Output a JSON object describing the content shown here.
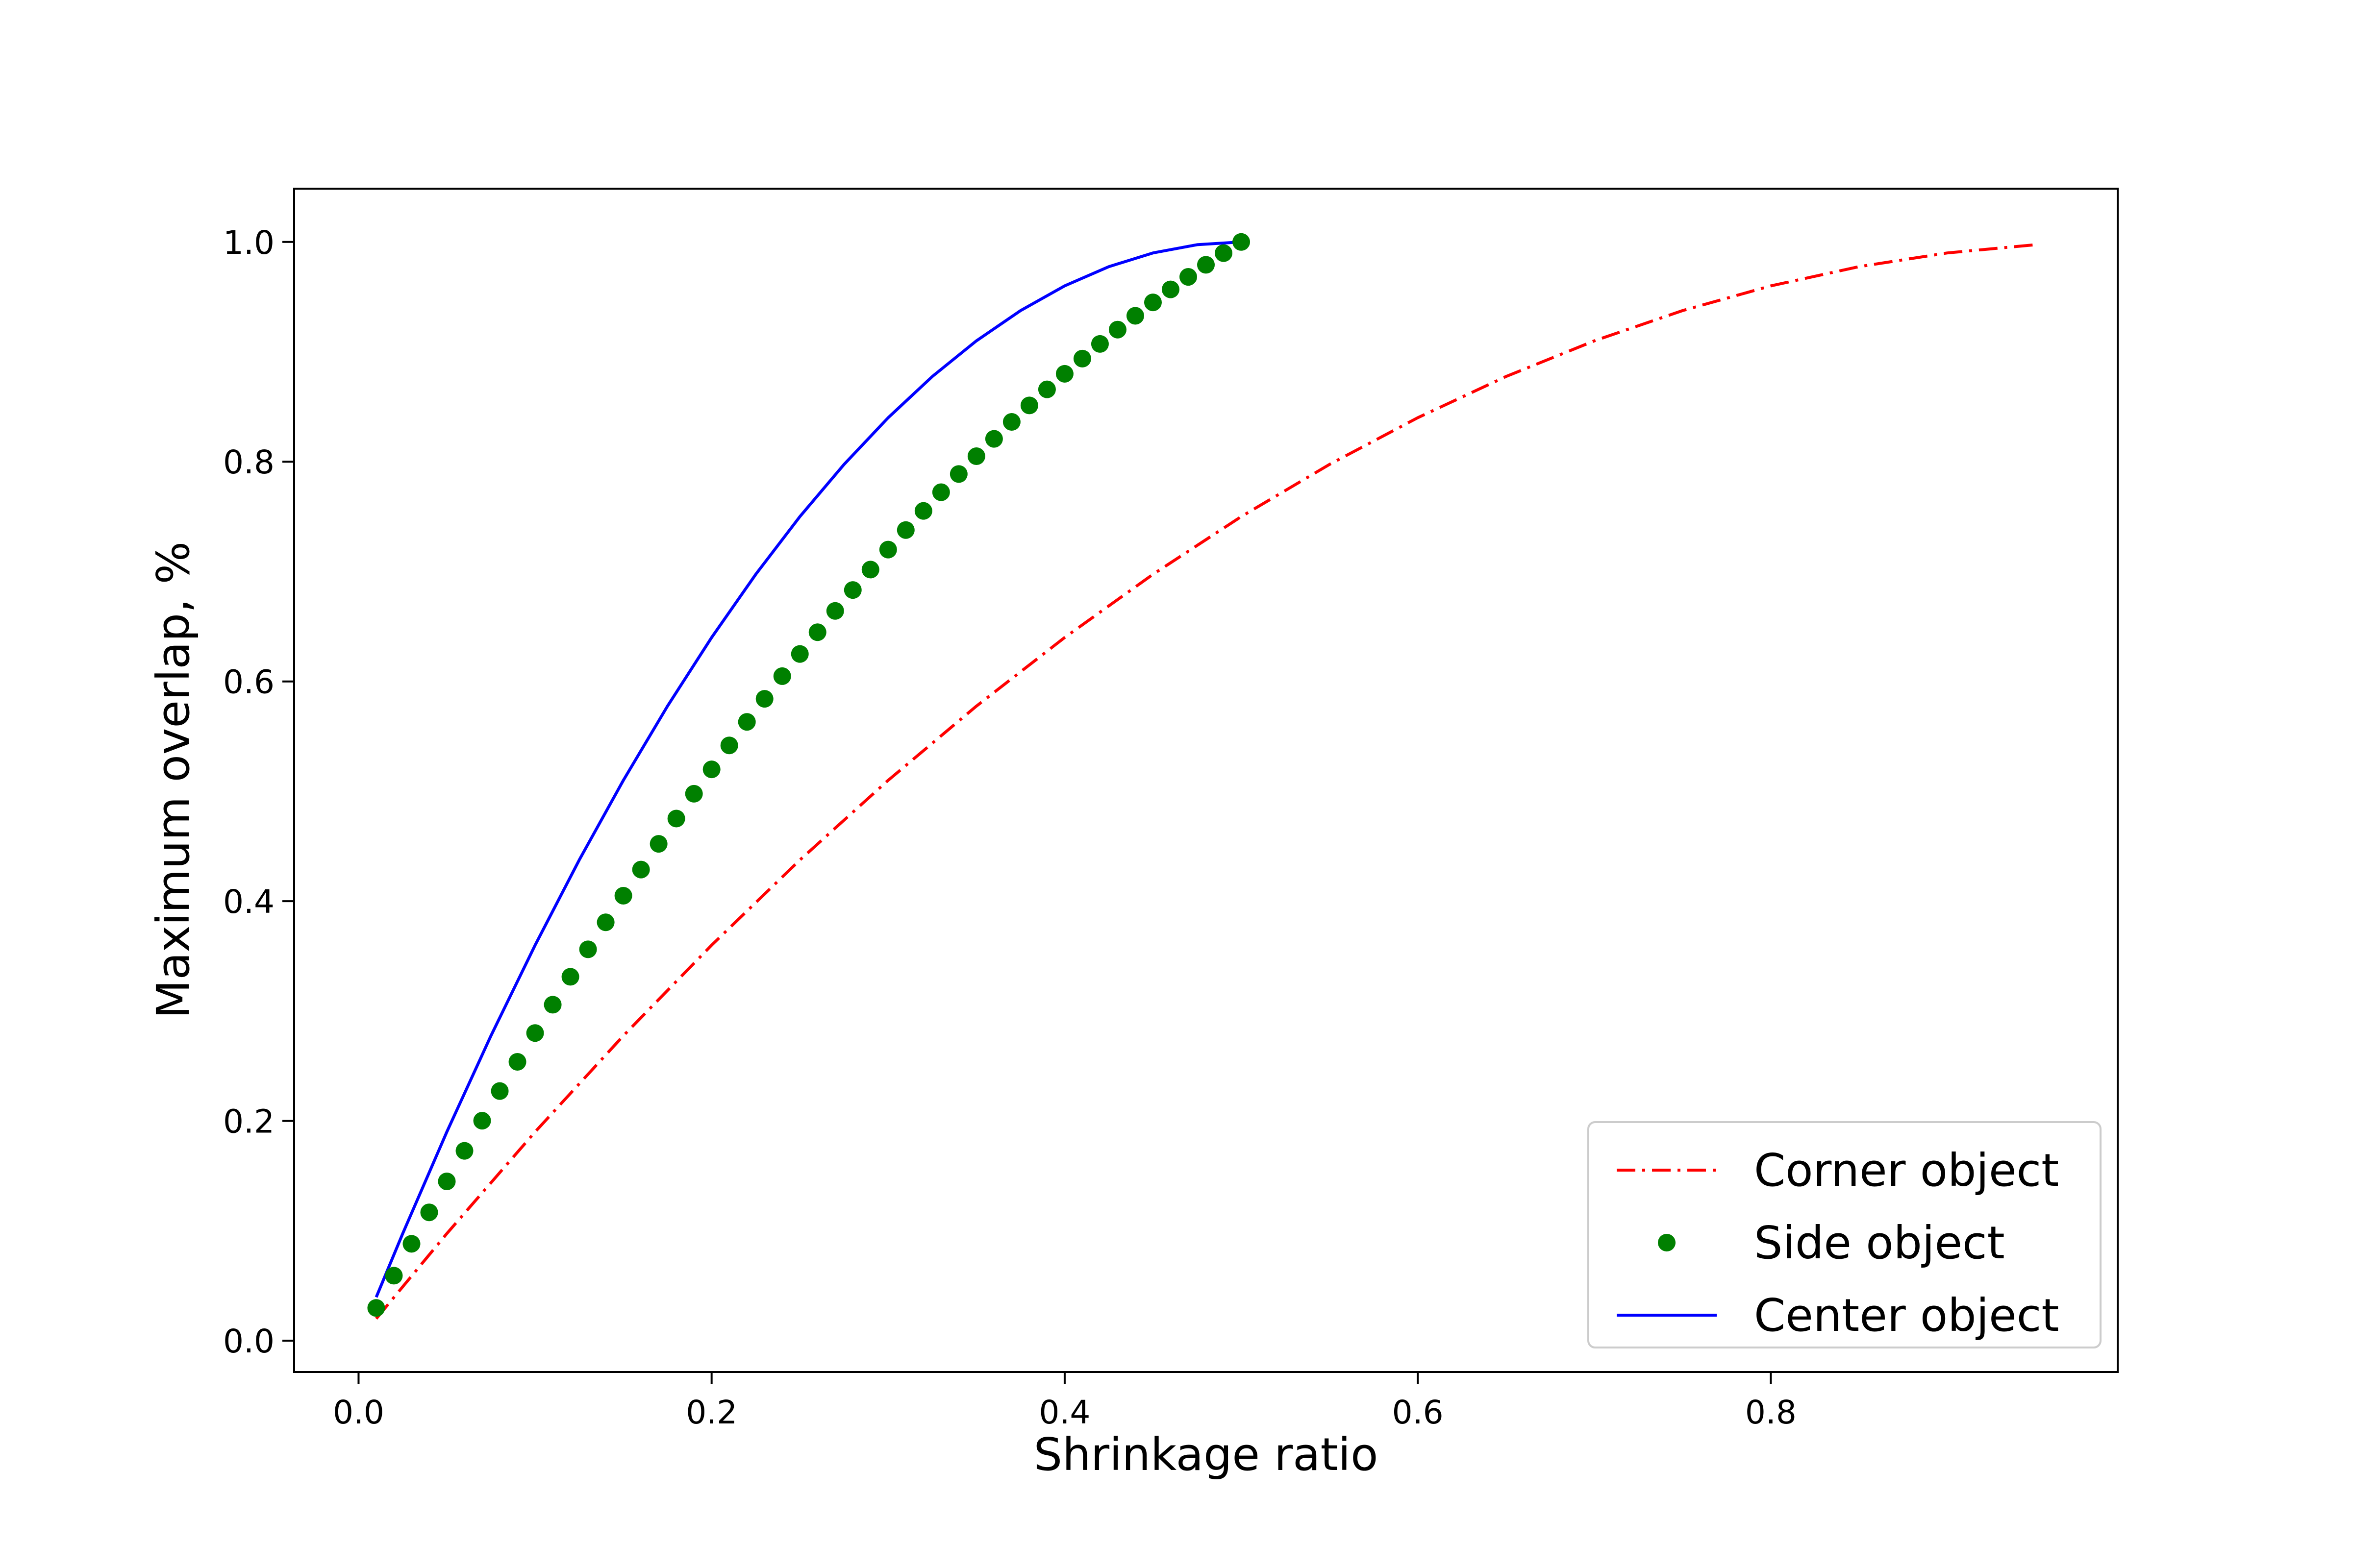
{
  "chart_data": {
    "type": "line",
    "title": "",
    "xlabel": "Shrinkage ratio",
    "ylabel": "Maximum overlap, %",
    "xlim": [
      -0.0365,
      0.9965
    ],
    "ylim": [
      -0.0285,
      1.0485
    ],
    "x_ticks": [
      0.0,
      0.2,
      0.4,
      0.6,
      0.8
    ],
    "x_tick_labels": [
      "0.0",
      "0.2",
      "0.4",
      "0.6",
      "0.8"
    ],
    "y_ticks": [
      0.0,
      0.2,
      0.4,
      0.6,
      0.8,
      1.0
    ],
    "y_tick_labels": [
      "0.0",
      "0.2",
      "0.4",
      "0.6",
      "0.8",
      "1.0"
    ],
    "grid": false,
    "legend_position": "lower-right",
    "series": [
      {
        "name": "Corner object",
        "style": "dash-dot line",
        "color": "#ff0000",
        "x": [
          0.01,
          0.05,
          0.1,
          0.15,
          0.2,
          0.25,
          0.3,
          0.35,
          0.4,
          0.45,
          0.5,
          0.55,
          0.6,
          0.65,
          0.7,
          0.75,
          0.8,
          0.85,
          0.9,
          0.95
        ],
        "y": [
          0.02,
          0.0975,
          0.19,
          0.2775,
          0.36,
          0.4375,
          0.51,
          0.5775,
          0.64,
          0.6975,
          0.75,
          0.7975,
          0.84,
          0.8775,
          0.91,
          0.9375,
          0.96,
          0.9775,
          0.99,
          0.9975
        ]
      },
      {
        "name": "Side object",
        "style": "markers",
        "color": "#008000",
        "x": [
          0.01,
          0.02,
          0.03,
          0.04,
          0.05,
          0.06,
          0.07,
          0.08,
          0.09,
          0.1,
          0.11,
          0.12,
          0.13,
          0.14,
          0.15,
          0.16,
          0.17,
          0.18,
          0.19,
          0.2,
          0.21,
          0.22,
          0.23,
          0.24,
          0.25,
          0.26,
          0.27,
          0.28,
          0.29,
          0.3,
          0.31,
          0.32,
          0.33,
          0.34,
          0.35,
          0.36,
          0.37,
          0.38,
          0.39,
          0.4,
          0.41,
          0.42,
          0.43,
          0.44,
          0.45,
          0.46,
          0.47,
          0.48,
          0.49,
          0.5
        ],
        "y": [
          0.0298,
          0.0592,
          0.0882,
          0.1168,
          0.145,
          0.1728,
          0.2002,
          0.2272,
          0.2538,
          0.28,
          0.3058,
          0.3312,
          0.3562,
          0.3808,
          0.405,
          0.4288,
          0.4522,
          0.4752,
          0.4978,
          0.52,
          0.5418,
          0.5632,
          0.5842,
          0.6048,
          0.625,
          0.6448,
          0.6642,
          0.6832,
          0.7018,
          0.72,
          0.7378,
          0.7552,
          0.7722,
          0.7888,
          0.805,
          0.8208,
          0.8362,
          0.8512,
          0.8658,
          0.88,
          0.8938,
          0.9072,
          0.9202,
          0.9328,
          0.945,
          0.9568,
          0.9682,
          0.9792,
          0.9898,
          1.0
        ]
      },
      {
        "name": "Center object",
        "style": "solid line",
        "color": "#0000ff",
        "x": [
          0.01,
          0.025,
          0.05,
          0.075,
          0.1,
          0.125,
          0.15,
          0.175,
          0.2,
          0.225,
          0.25,
          0.275,
          0.3,
          0.325,
          0.35,
          0.375,
          0.4,
          0.425,
          0.45,
          0.475,
          0.5
        ],
        "y": [
          0.0396,
          0.0975,
          0.19,
          0.2775,
          0.36,
          0.4375,
          0.51,
          0.5775,
          0.64,
          0.6975,
          0.75,
          0.7975,
          0.84,
          0.8775,
          0.91,
          0.9375,
          0.96,
          0.9775,
          0.99,
          0.9975,
          1.0
        ]
      }
    ]
  }
}
